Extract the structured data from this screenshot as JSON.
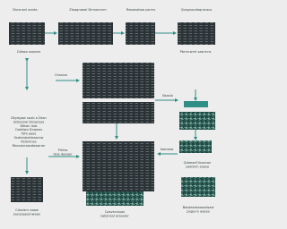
{
  "title_row": [
    "Dsrsnanl aanta",
    "Zlaagnaaal Dmnanrnm",
    "Rwsesabaa psmrs",
    "Qvsgnoudaqnsraus"
  ],
  "labels": {
    "left_top": "Cdkwa ssausrs",
    "right_top": "Pbrrnrwnrl sasrrcns",
    "center_in": "Ovssrss",
    "right_mid": "Bsasla",
    "left_block": [
      "Dkydgaw saub a Dssn",
      "Qdssanal Dssansas",
      "Wbwn laat",
      "Oaddwa Dnaaws",
      "Tsfa aaes",
      "Ssdsnsbaldsaarsw",
      "Rsdsnnsa",
      "Rbanasraasdawaran"
    ],
    "center_low": [
      "Prkkw",
      "Qoe deaaer"
    ],
    "right_low": [
      "Qdaeaaf fosanan",
      "saddnm saasa"
    ],
    "right_arrow_label": "Iaansaw",
    "bottom_left": [
      "Cdsslsnr aaaw",
      "sasusaaasnwaan"
    ],
    "bottom_center": [
      "Cpsvsrussas",
      "sabsnsal arsaarer"
    ],
    "bottom_right": [
      "Basdasdsaaasdsaw",
      "pagunn aaesa"
    ]
  }
}
